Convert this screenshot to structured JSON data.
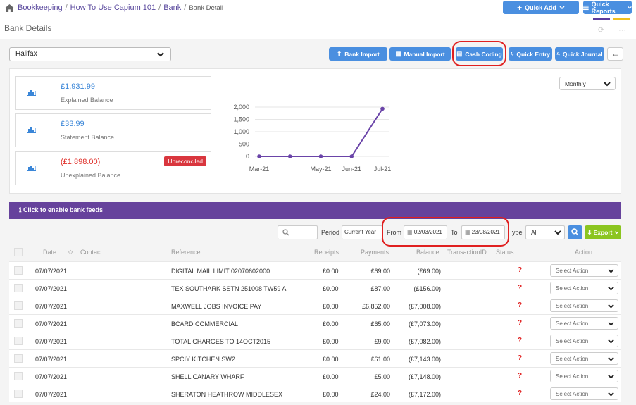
{
  "breadcrumb": {
    "items": [
      "Bookkeeping",
      "How To Use Capium 101",
      "Bank"
    ],
    "current": "Bank Detail"
  },
  "header": {
    "quick_add": "Quick Add",
    "quick_reports": "Quick Reports"
  },
  "page": {
    "title": "Bank Details"
  },
  "bank": {
    "selected": "Halifax"
  },
  "actions": {
    "bank_import": "Bank Import",
    "manual_import": "Manual Import",
    "cash_coding": "Cash Coding",
    "quick_entry": "Quick Entry",
    "quick_journal": "Quick Journal"
  },
  "balances": {
    "explained": {
      "amount": "£1,931.99",
      "label": "Explained Balance"
    },
    "statement": {
      "amount": "£33.99",
      "label": "Statement Balance"
    },
    "unexplained": {
      "amount": "(£1,898.00)",
      "label": "Unexplained Balance",
      "badge": "Unreconciled"
    }
  },
  "period_select": "Monthly",
  "chart_data": {
    "type": "line",
    "x": [
      "Mar-21",
      "Apr-21",
      "May-21",
      "Jun-21",
      "Jul-21"
    ],
    "xtick_labels": [
      "Mar-21",
      "",
      "May-21",
      "Jun-21",
      "Jul-21"
    ],
    "values": [
      0,
      0,
      0,
      0,
      1931.99
    ],
    "yticks": [
      "0",
      "500",
      "1,000",
      "1,500",
      "2,000"
    ],
    "ylim": [
      0,
      2000
    ],
    "color": "#6a44a8"
  },
  "feeds": {
    "text": "Click to enable bank feeds"
  },
  "filters": {
    "period_label": "Period",
    "period_value": "Current Year",
    "from_label": "From",
    "from_date": "02/03/2021",
    "to_label": "To",
    "to_date": "23/08/2021",
    "type_label": "ype",
    "type_value": "All",
    "export_label": "Export"
  },
  "table": {
    "headers": {
      "date": "Date",
      "contact": "Contact",
      "reference": "Reference",
      "receipts": "Receipts",
      "payments": "Payments",
      "balance": "Balance",
      "transaction_id": "TransactionID",
      "status": "Status",
      "action": "Action"
    },
    "rows": [
      {
        "date": "07/07/2021",
        "reference": "DIGITAL MAIL LIMIT 02070602000",
        "receipts": "£0.00",
        "payments": "£69.00",
        "balance": "(£69.00)",
        "status": "?",
        "action": "Select Action"
      },
      {
        "date": "07/07/2021",
        "reference": "TEX SOUTHARK SSTN 251008 TW59 A",
        "receipts": "£0.00",
        "payments": "£87.00",
        "balance": "(£156.00)",
        "status": "?",
        "action": "Select Action"
      },
      {
        "date": "07/07/2021",
        "reference": "MAXWELL JOBS INVOICE PAY",
        "receipts": "£0.00",
        "payments": "£6,852.00",
        "balance": "(£7,008.00)",
        "status": "?",
        "action": "Select Action"
      },
      {
        "date": "07/07/2021",
        "reference": "BCARD COMMERCIAL",
        "receipts": "£0.00",
        "payments": "£65.00",
        "balance": "(£7,073.00)",
        "status": "?",
        "action": "Select Action"
      },
      {
        "date": "07/07/2021",
        "reference": "TOTAL CHARGES TO 14OCT2015",
        "receipts": "£0.00",
        "payments": "£9.00",
        "balance": "(£7,082.00)",
        "status": "?",
        "action": "Select Action"
      },
      {
        "date": "07/07/2021",
        "reference": "SPCIY KITCHEN SW2",
        "receipts": "£0.00",
        "payments": "£61.00",
        "balance": "(£7,143.00)",
        "status": "?",
        "action": "Select Action"
      },
      {
        "date": "07/07/2021",
        "reference": "SHELL CANARY WHARF",
        "receipts": "£0.00",
        "payments": "£5.00",
        "balance": "(£7,148.00)",
        "status": "?",
        "action": "Select Action"
      },
      {
        "date": "07/07/2021",
        "reference": "SHERATON HEATHROW MIDDLESEX",
        "receipts": "£0.00",
        "payments": "£24.00",
        "balance": "(£7,172.00)",
        "status": "?",
        "action": "Select Action"
      }
    ]
  }
}
